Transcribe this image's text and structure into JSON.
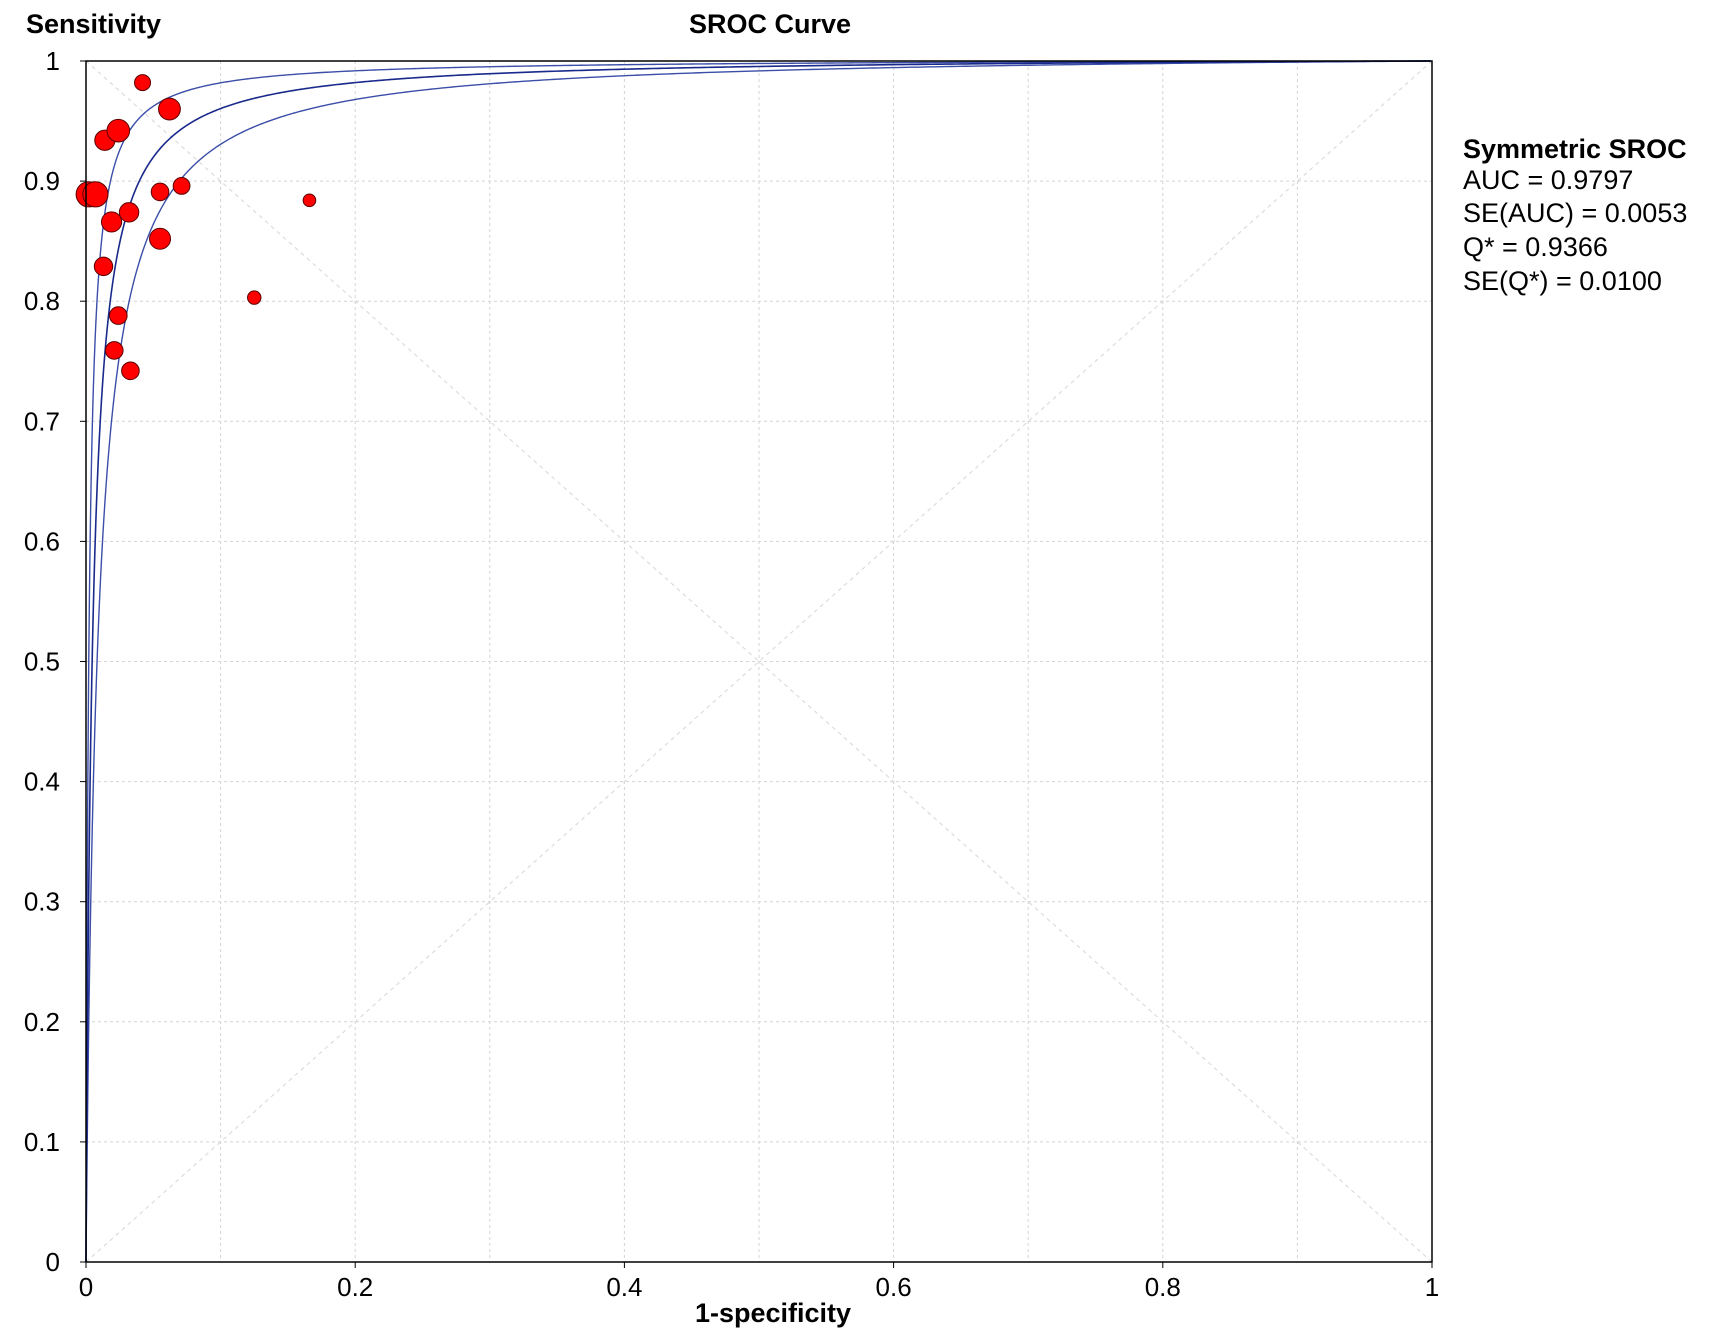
{
  "chart_data": {
    "type": "scatter",
    "title": "SROC Curve",
    "xlabel": "1-specificity",
    "ylabel": "Sensitivity",
    "xlim": [
      0,
      1
    ],
    "ylim": [
      0,
      1
    ],
    "grid": true,
    "x_ticks": [
      "0",
      "0.2",
      "0.4",
      "0.6",
      "0.8",
      "1"
    ],
    "y_ticks": [
      "0",
      "0.1",
      "0.2",
      "0.3",
      "0.4",
      "0.5",
      "0.6",
      "0.7",
      "0.8",
      "0.9",
      "1"
    ],
    "legend": {
      "title": "Symmetric SROC",
      "lines": [
        "AUC = 0.9797",
        "SE(AUC) = 0.0053",
        "Q* = 0.9366",
        "SE(Q*) = 0.0100"
      ],
      "placement": "right"
    },
    "curve": {
      "auc": 0.9797,
      "q_star": 0.9366,
      "q_star_se": 0.01,
      "color": "#1a2a8c",
      "band_color": "#3b4ea8"
    },
    "points": [
      {
        "x": 0.002,
        "y": 0.889,
        "size": 3
      },
      {
        "x": 0.007,
        "y": 0.889,
        "size": 3
      },
      {
        "x": 0.014,
        "y": 0.934,
        "size": 2.4
      },
      {
        "x": 0.024,
        "y": 0.942,
        "size": 2.7
      },
      {
        "x": 0.042,
        "y": 0.982,
        "size": 1.9
      },
      {
        "x": 0.062,
        "y": 0.96,
        "size": 2.6
      },
      {
        "x": 0.019,
        "y": 0.866,
        "size": 2.4
      },
      {
        "x": 0.032,
        "y": 0.874,
        "size": 2.3
      },
      {
        "x": 0.055,
        "y": 0.891,
        "size": 2.1
      },
      {
        "x": 0.071,
        "y": 0.896,
        "size": 2.0
      },
      {
        "x": 0.055,
        "y": 0.852,
        "size": 2.5
      },
      {
        "x": 0.013,
        "y": 0.829,
        "size": 2.2
      },
      {
        "x": 0.024,
        "y": 0.788,
        "size": 2.1
      },
      {
        "x": 0.021,
        "y": 0.759,
        "size": 2.1
      },
      {
        "x": 0.033,
        "y": 0.742,
        "size": 2.1
      },
      {
        "x": 0.125,
        "y": 0.803,
        "size": 1.6
      },
      {
        "x": 0.166,
        "y": 0.884,
        "size": 1.5
      }
    ],
    "point_color": "#ff0000",
    "point_stroke": "#5a0000"
  }
}
